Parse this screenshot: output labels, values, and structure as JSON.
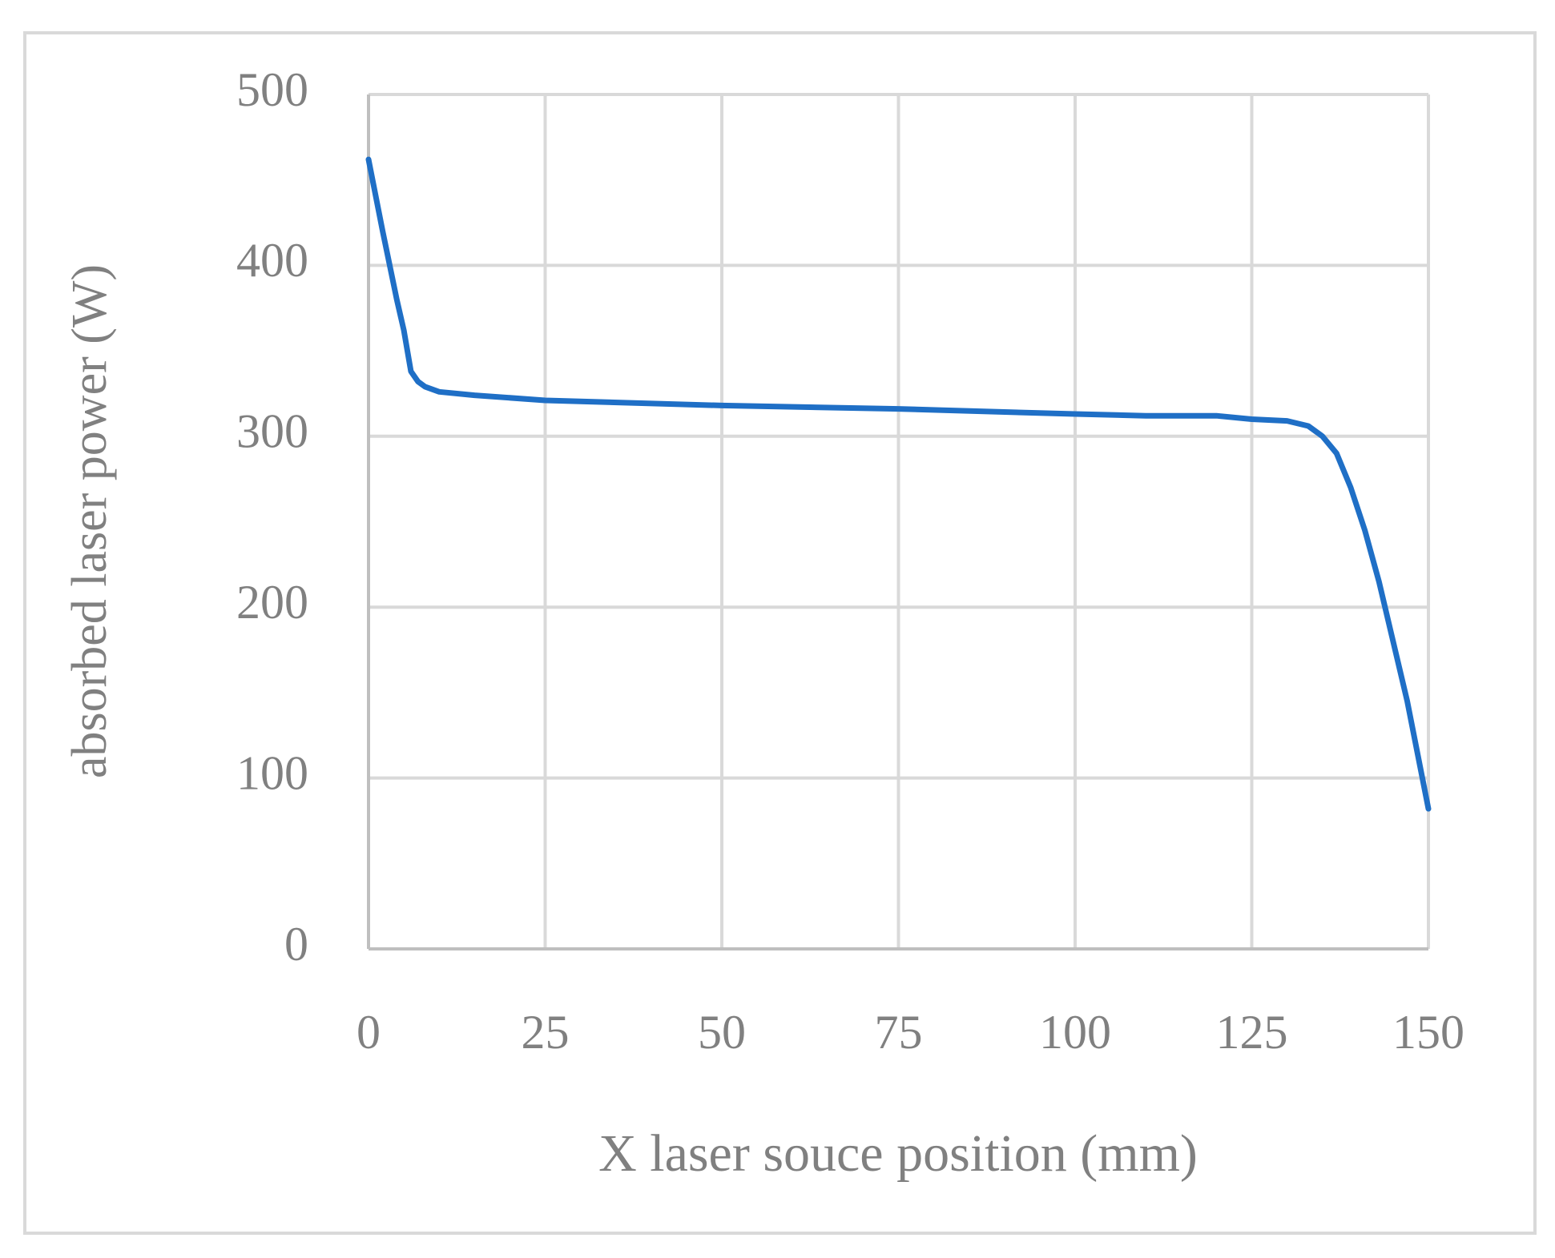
{
  "chart_data": {
    "type": "line",
    "x_label": "X laser souce position (mm)",
    "y_label": "absorbed laser power (W)",
    "series": [
      {
        "name": "absorbed laser power",
        "color": "#1f6fc6",
        "x": [
          0,
          2,
          4,
          5,
          5.5,
          6,
          7,
          8,
          10,
          15,
          25,
          50,
          75,
          100,
          110,
          120,
          125,
          130,
          133,
          135,
          137,
          139,
          141,
          143,
          145,
          147,
          150
        ],
        "values": [
          462,
          420,
          380,
          362,
          350,
          338,
          332,
          329,
          326,
          324,
          321,
          318,
          316,
          313,
          312,
          312,
          310,
          309,
          306,
          300,
          290,
          270,
          245,
          215,
          180,
          145,
          82
        ]
      }
    ],
    "xlim": [
      0,
      150
    ],
    "xticks": [
      0,
      25,
      50,
      75,
      100,
      125,
      150
    ],
    "ylim": [
      0,
      500
    ],
    "yticks": [
      0,
      100,
      200,
      300,
      400,
      500
    ],
    "grid": true
  }
}
